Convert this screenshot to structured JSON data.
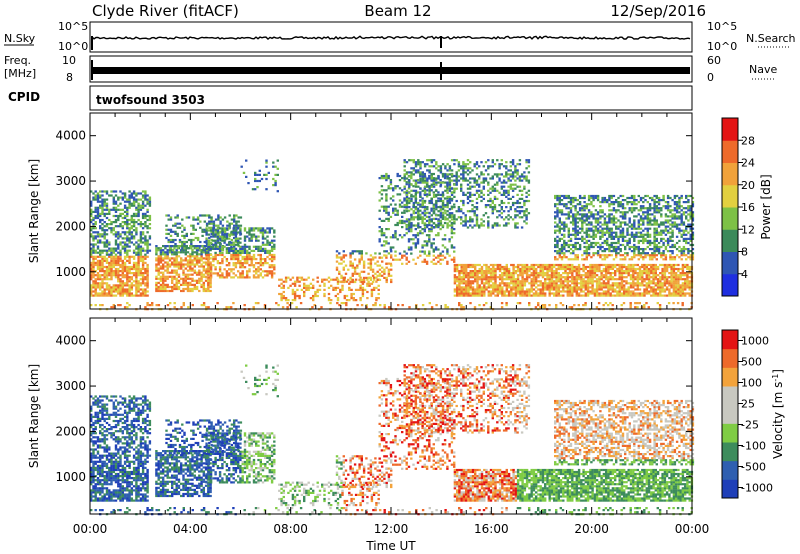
{
  "header": {
    "station": "Clyde River (fitACF)",
    "beam": "Beam 12",
    "date": "12/Sep/2016"
  },
  "strips": {
    "nsky_label": "N.Sky",
    "nsky_ticks": [
      "10^5",
      "10^0"
    ],
    "nsearch_label": "N.Search",
    "nsearch_ticks": [
      "10^5",
      "10^0"
    ],
    "freq_label_1": "Freq.",
    "freq_label_2": "[MHz]",
    "freq_ticks": [
      "10",
      "8"
    ],
    "nave_label": "Nave",
    "nave_ticks": [
      "60",
      "0"
    ],
    "cpid_label": "CPID",
    "cpid_value": "twofsound 3503"
  },
  "colors": {
    "power": [
      "#1f2fe0",
      "#2f56b3",
      "#3b8a5a",
      "#7dc146",
      "#e2d040",
      "#f1a23a",
      "#ee6a2a",
      "#e41414"
    ],
    "velocity": [
      "#e41414",
      "#ee6a2a",
      "#f3a33b",
      "#c8c8c0",
      "#c8c8c0",
      "#7fcc44",
      "#3d8c5c",
      "#2f5fb0",
      "#1f3fb8"
    ]
  },
  "chart_data": [
    {
      "type": "heatmap",
      "name": "power",
      "xlabel": "",
      "ylabel": "Slant Range [km]",
      "x_range": [
        "00:00",
        "00:00"
      ],
      "ylim": [
        180,
        4500
      ],
      "y_ticks": [
        "1000",
        "2000",
        "3000",
        "4000"
      ],
      "colorbar_label": "Power [dB]",
      "colorbar_ticks": [
        "4",
        "8",
        "12",
        "16",
        "20",
        "24",
        "28"
      ]
    },
    {
      "type": "heatmap",
      "name": "velocity",
      "xlabel": "Time UT",
      "ylabel": "Slant Range [km]",
      "x_range": [
        "00:00",
        "00:00"
      ],
      "x_ticks": [
        "00:00",
        "04:00",
        "08:00",
        "12:00",
        "16:00",
        "20:00",
        "00:00"
      ],
      "ylim": [
        180,
        4500
      ],
      "y_ticks": [
        "1000",
        "2000",
        "3000",
        "4000"
      ],
      "colorbar_label": "Velocity [m s^-1]",
      "colorbar_ticks": [
        "1000",
        "500",
        "100",
        "25",
        "-25",
        "-100",
        "-500",
        "-1000"
      ]
    }
  ]
}
